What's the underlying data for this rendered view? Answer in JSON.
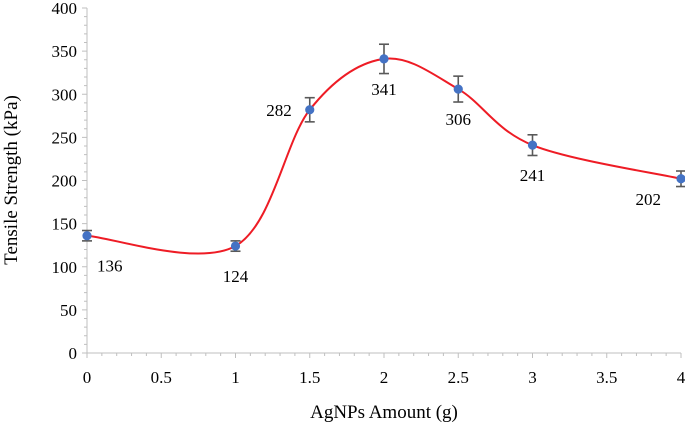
{
  "chart_data": {
    "type": "scatter",
    "xlabel": "AgNPs Amount (g)",
    "ylabel": "Tensile Strength (kPa)",
    "xlim": [
      0,
      4
    ],
    "ylim": [
      0,
      400
    ],
    "xticks": [
      0,
      0.5,
      1,
      1.5,
      2,
      2.5,
      3,
      3.5,
      4
    ],
    "xtick_labels": [
      "0",
      "0.5",
      "1",
      "1.5",
      "2",
      "2.5",
      "3",
      "3.5",
      "4"
    ],
    "yticks": [
      0,
      50,
      100,
      150,
      200,
      250,
      300,
      350,
      400
    ],
    "ytick_labels": [
      "0",
      "50",
      "100",
      "150",
      "200",
      "250",
      "300",
      "350",
      "400"
    ],
    "grid": false,
    "line_style": "smoothed",
    "series": [
      {
        "x": [
          0,
          1,
          1.5,
          2,
          2.5,
          3,
          4
        ],
        "y": [
          136,
          124,
          282,
          341,
          306,
          241,
          202
        ],
        "error": [
          6,
          6,
          14,
          17,
          15,
          12,
          9
        ],
        "labels": [
          "136",
          "124",
          "282",
          "341",
          "306",
          "241",
          "202"
        ],
        "label_positions": [
          "below-right",
          "below",
          "left",
          "below",
          "below",
          "below",
          "below-left"
        ]
      }
    ],
    "colors": {
      "line": "#ee1c25",
      "marker": "#4472c4",
      "error_bar": "#595959",
      "axis": "#bfbfbf"
    }
  }
}
